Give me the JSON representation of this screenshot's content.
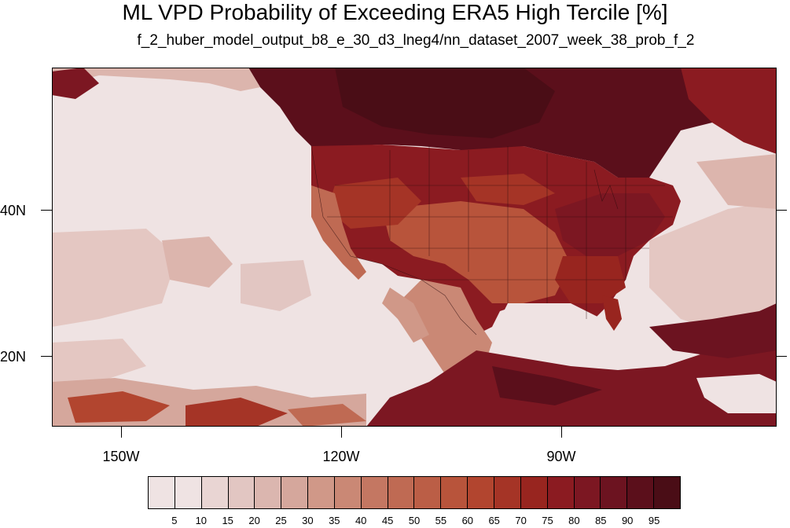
{
  "title": "ML VPD Probability of Exceeding ERA5 High Tercile [%]",
  "subtitle": "f_2_huber_model_output_b8_e_30_d3_lneg4/nn_dataset_2007_week_38_prob_f_2",
  "map": {
    "lat_labels": [
      "40N",
      "20N"
    ],
    "lon_labels": [
      "150W",
      "120W",
      "90W"
    ]
  },
  "colorbar": {
    "labels": [
      "5",
      "10",
      "15",
      "20",
      "25",
      "30",
      "35",
      "40",
      "45",
      "50",
      "55",
      "60",
      "65",
      "70",
      "75",
      "80",
      "85",
      "90",
      "95"
    ],
    "colors": [
      "#efe3e3",
      "#e9d5d3",
      "#e2c6c2",
      "#dbb6af",
      "#d5a79c",
      "#d09888",
      "#ca8875",
      "#c47762",
      "#bf6a53",
      "#bb5e46",
      "#b8543b",
      "#b2452f",
      "#a53426",
      "#98251f",
      "#8b1b21",
      "#7c1722",
      "#6c1320",
      "#5b0f1b",
      "#4a0d16"
    ]
  }
}
